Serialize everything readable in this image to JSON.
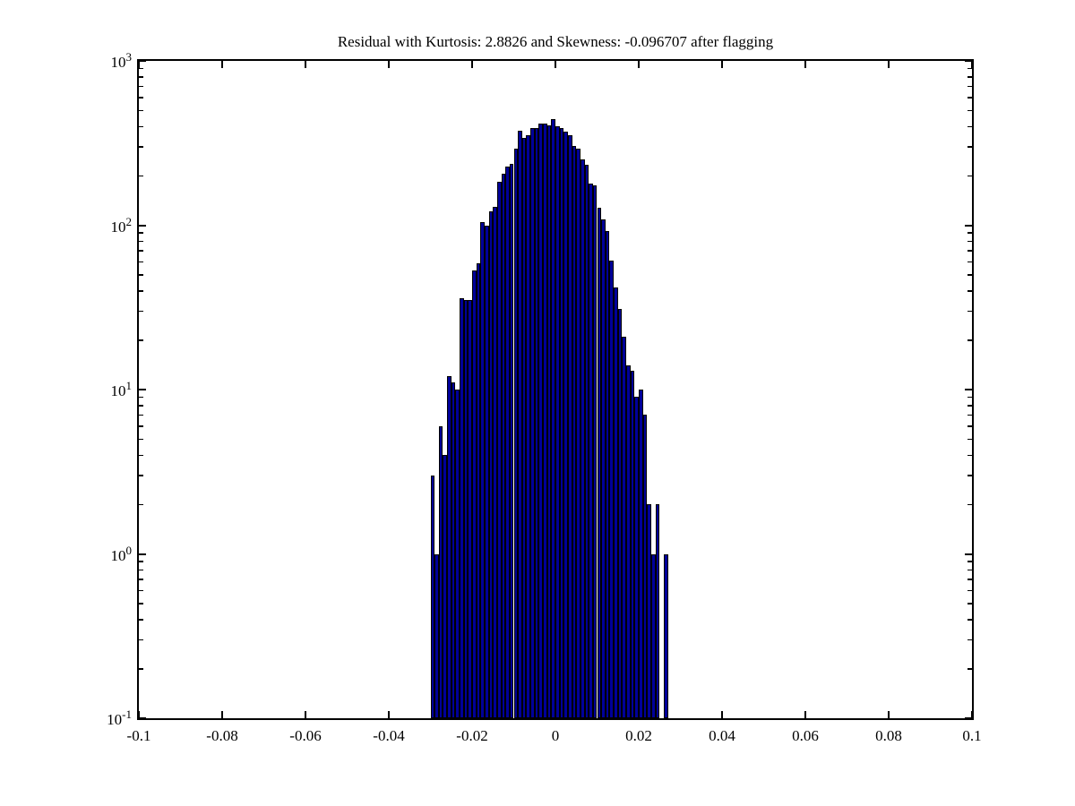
{
  "figure": {
    "kind": "matlab-figure-screenshot",
    "background": "#ffffff"
  },
  "title": {
    "text": "Residual with Kurtosis: 2.8826 and Skewness: -0.096707 after flagging",
    "kurtosis": "2.8826",
    "skewness": "-0.096707"
  },
  "colors": {
    "bar_fill": "#000099",
    "bar_edge": "#000000",
    "axis": "#000000",
    "text": "#000000",
    "background": "#ffffff"
  },
  "chart_data": {
    "type": "bar",
    "subtype": "histogram",
    "title": "Residual with Kurtosis: 2.8826 and Skewness: -0.096707 after flagging",
    "xlabel": "",
    "ylabel": "",
    "grid": false,
    "legend": null,
    "box": true,
    "x_axis": {
      "scale": "linear",
      "min": -0.1,
      "max": 0.1,
      "tick_values": [
        -0.1,
        -0.08,
        -0.06,
        -0.04,
        -0.02,
        0,
        0.02,
        0.04,
        0.06,
        0.08,
        0.1
      ],
      "tick_labels": [
        "-0.1",
        "-0.08",
        "-0.06",
        "-0.04",
        "-0.02",
        "0",
        "0.02",
        "0.04",
        "0.06",
        "0.08",
        "0.1"
      ]
    },
    "y_axis": {
      "scale": "log10",
      "min": 0.1,
      "max": 1000,
      "tick_base": "10",
      "tick_exponents": [
        "3",
        "2",
        "1",
        "0",
        "-1"
      ],
      "tick_values": [
        1000,
        100,
        10,
        1,
        0.1
      ],
      "minor_tick_multipliers": [
        2,
        3,
        4,
        5,
        6,
        7,
        8,
        9
      ]
    },
    "bins": {
      "start": -0.03,
      "width": 0.001
    },
    "values": [
      3,
      1,
      6,
      4,
      12,
      11,
      10,
      36,
      35,
      35,
      53,
      59,
      104,
      100,
      121,
      129,
      184,
      206,
      227,
      236,
      293,
      378,
      341,
      355,
      388,
      388,
      413,
      413,
      403,
      440,
      398,
      388,
      370,
      355,
      305,
      293,
      251,
      232,
      180,
      175,
      128,
      109,
      92,
      61,
      42,
      31,
      21,
      14,
      13,
      9,
      10,
      7,
      2,
      1,
      2,
      0,
      1
    ]
  }
}
